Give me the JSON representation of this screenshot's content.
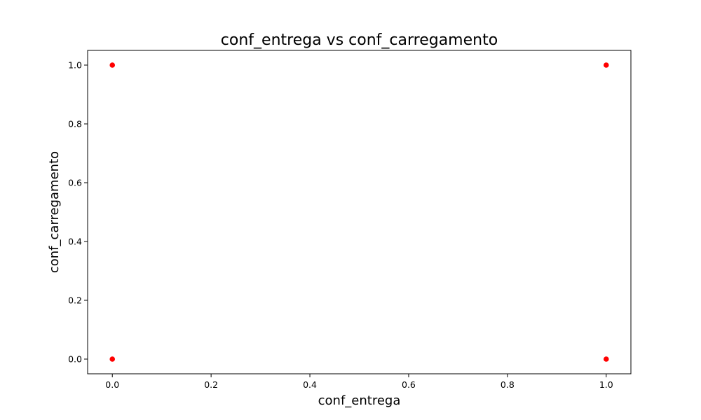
{
  "chart_data": {
    "type": "scatter",
    "title": "conf_entrega vs conf_carregamento",
    "xlabel": "conf_entrega",
    "ylabel": "conf_carregamento",
    "xlim": [
      -0.05,
      1.05
    ],
    "ylim": [
      -0.05,
      1.05
    ],
    "xticks": [
      0.0,
      0.2,
      0.4,
      0.6,
      0.8,
      1.0
    ],
    "yticks": [
      0.0,
      0.2,
      0.4,
      0.6,
      0.8,
      1.0
    ],
    "xtick_labels": [
      "0.0",
      "0.2",
      "0.4",
      "0.6",
      "0.8",
      "1.0"
    ],
    "ytick_labels": [
      "0.0",
      "0.2",
      "0.4",
      "0.6",
      "0.8",
      "1.0"
    ],
    "grid": false,
    "point_color": "#ff0000",
    "points": [
      {
        "x": 0,
        "y": 1
      },
      {
        "x": 0,
        "y": 0
      },
      {
        "x": 1,
        "y": 1
      },
      {
        "x": 1,
        "y": 0
      }
    ]
  }
}
